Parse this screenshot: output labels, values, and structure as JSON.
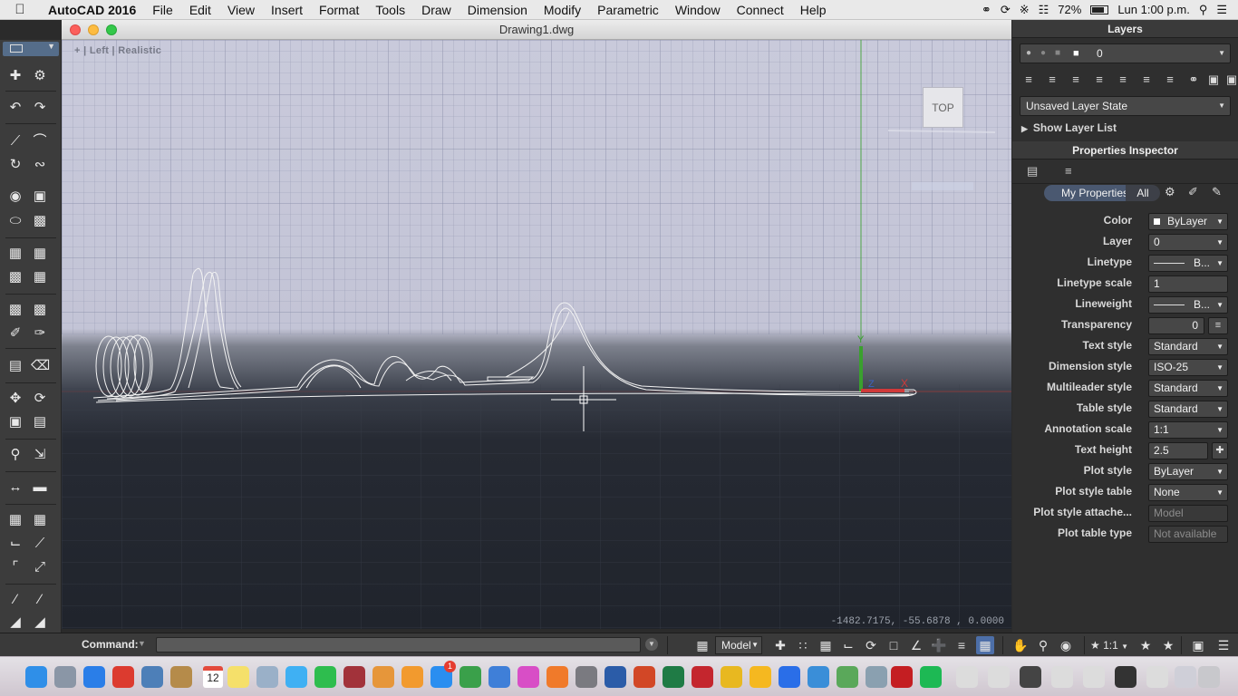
{
  "menubar": {
    "apple": "",
    "app": "AutoCAD 2016",
    "items": [
      "File",
      "Edit",
      "View",
      "Insert",
      "Format",
      "Tools",
      "Draw",
      "Dimension",
      "Modify",
      "Parametric",
      "Window",
      "Connect",
      "Help"
    ],
    "battery": "72%",
    "clock": "Lun 1:00 p.m."
  },
  "window": {
    "title": "Drawing1.dwg"
  },
  "viewport": {
    "label": "+ | Left | Realistic",
    "viewcube": "TOP",
    "coords": "-1482.7175, -55.6878 , 0.0000"
  },
  "layers": {
    "title": "Layers",
    "current": "0",
    "state": "Unsaved Layer State",
    "show_list": "Show Layer List"
  },
  "properties": {
    "title": "Properties Inspector",
    "tab_mine": "My Properties",
    "tab_all": "All",
    "rows": [
      {
        "label": "Color",
        "value": "ByLayer"
      },
      {
        "label": "Layer",
        "value": "0"
      },
      {
        "label": "Linetype",
        "value": "B..."
      },
      {
        "label": "Linetype scale",
        "value": "1"
      },
      {
        "label": "Lineweight",
        "value": "B..."
      },
      {
        "label": "Transparency",
        "value": "0"
      },
      {
        "label": "Text style",
        "value": "Standard"
      },
      {
        "label": "Dimension style",
        "value": "ISO-25"
      },
      {
        "label": "Multileader style",
        "value": "Standard"
      },
      {
        "label": "Table style",
        "value": "Standard"
      },
      {
        "label": "Annotation scale",
        "value": "1:1"
      },
      {
        "label": "Text height",
        "value": "2.5"
      },
      {
        "label": "Plot style",
        "value": "ByLayer"
      },
      {
        "label": "Plot style table",
        "value": "None"
      },
      {
        "label": "Plot style attache...",
        "value": "Model"
      },
      {
        "label": "Plot table type",
        "value": "Not available"
      }
    ]
  },
  "command": {
    "label": "Command:",
    "model": "Model",
    "scale": "1:1"
  },
  "dock": {
    "calendar_day": "12",
    "badge": "1"
  },
  "colors": {
    "accent": "#556d8a",
    "grid_top": "#c7c8d9",
    "grid_bottom": "#22262e",
    "axis_y": "#3aa02e",
    "axis_x": "#d03a3a"
  }
}
